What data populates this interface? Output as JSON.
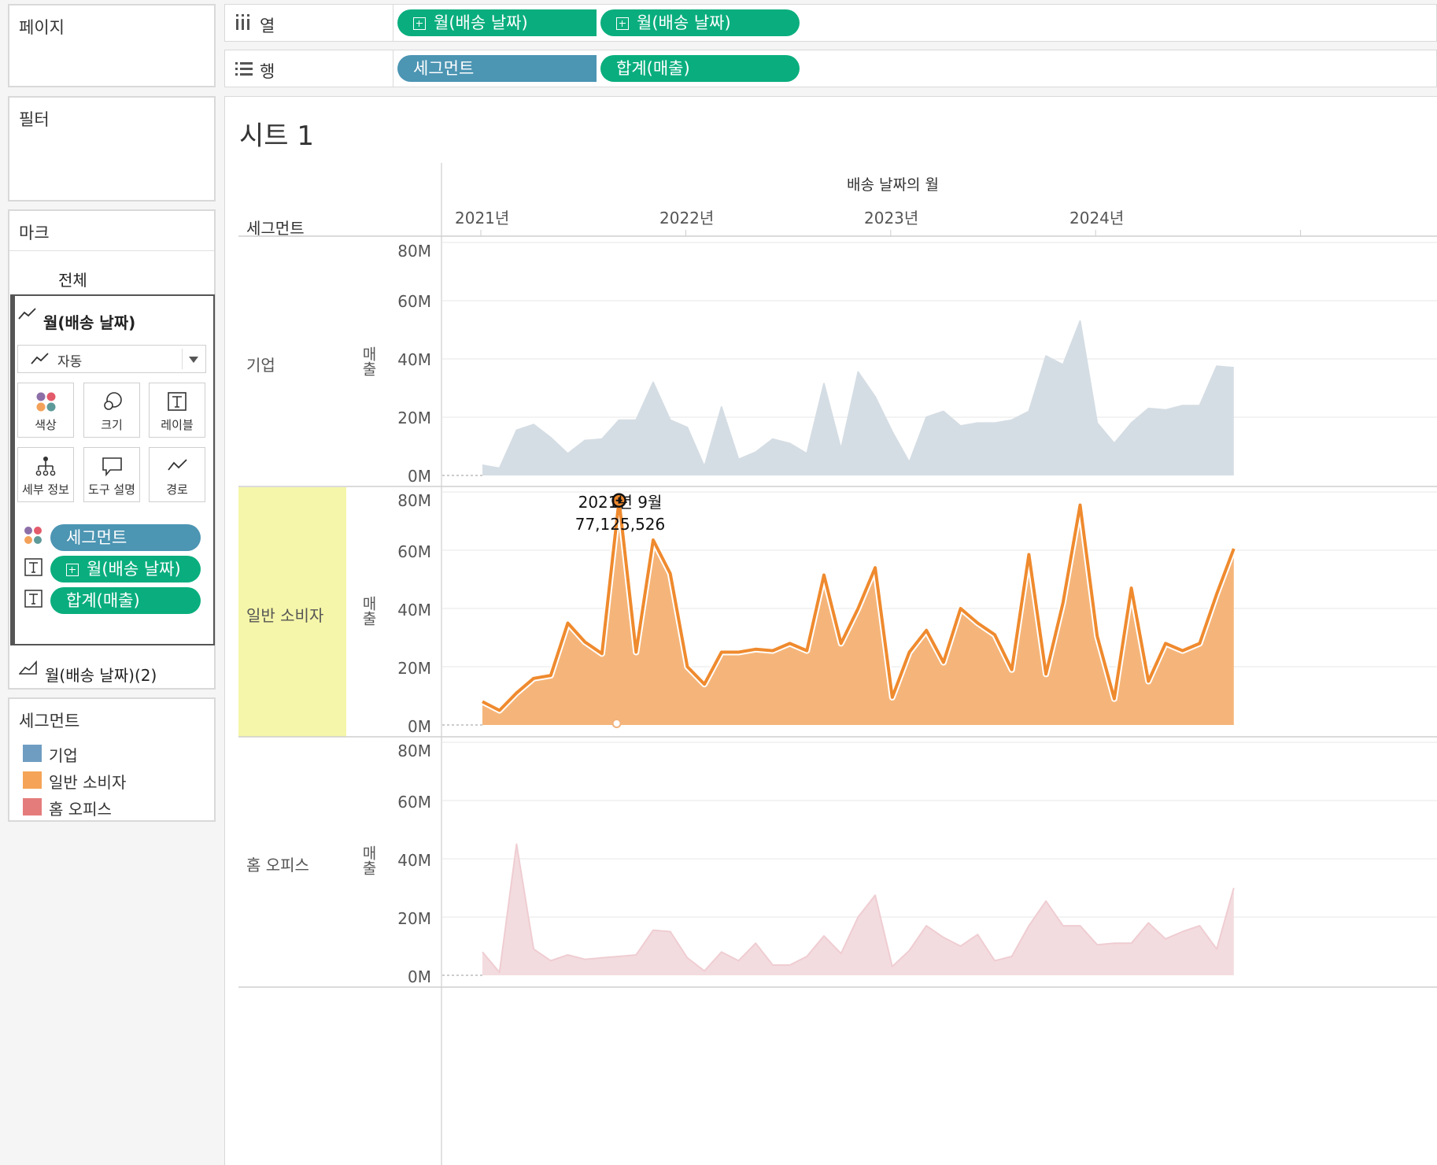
{
  "pages_card": {
    "title": "페이지"
  },
  "filters_card": {
    "title": "필터"
  },
  "marks_card": {
    "title": "마크",
    "all_tab": "전체",
    "layer1": "월(배송 날짜)",
    "mark_type": "자동",
    "buttons": {
      "color": "색상",
      "size": "크기",
      "label": "레이블",
      "detail": "세부 정보",
      "tooltip": "도구 설명",
      "path": "경로"
    },
    "fields": {
      "segment": "세그먼트",
      "month": "월(배송 날짜)",
      "sum_sales": "합계(매출)"
    },
    "layer2": "월(배송 날짜)(2)"
  },
  "legend": {
    "title": "세그먼트",
    "items": [
      {
        "label": "기업",
        "color": "#6f9dc2"
      },
      {
        "label": "일반 소비자",
        "color": "#f5a457"
      },
      {
        "label": "홈 오피스",
        "color": "#e57c7c"
      }
    ]
  },
  "shelves": {
    "columns": {
      "label": "열",
      "pills": [
        "월(배송 날짜)",
        "월(배송 날짜)"
      ]
    },
    "rows": {
      "label": "행",
      "pills": [
        "세그먼트",
        "합계(매출)"
      ]
    }
  },
  "sheet": {
    "title": "시트 1",
    "row_header": "세그먼트",
    "col_header": "배송 날짜의 월",
    "sales_axis": "매출",
    "segments": [
      "기업",
      "일반 소비자",
      "홈 오피스"
    ]
  },
  "chart_data": {
    "type": "area",
    "x_unit": "month",
    "x_start": "2021-01",
    "x_tick_labels": [
      "2021년",
      "2022년",
      "2023년",
      "2024년"
    ],
    "y_ticks": [
      "0M",
      "20M",
      "40M",
      "60M",
      "80M"
    ],
    "ylim": [
      0,
      80000000
    ],
    "series": [
      {
        "name": "기업",
        "color": "#d5dde4",
        "stroke": "#d5dde4",
        "values": [
          3.5,
          2.5,
          15.5,
          17.5,
          13,
          7.5,
          12,
          12.5,
          19,
          19,
          32,
          19,
          16.5,
          3,
          23.5,
          5.5,
          8,
          12.5,
          11,
          7.5,
          31.5,
          9,
          35.5,
          27,
          15,
          4.5,
          20,
          22,
          17,
          18,
          18,
          19,
          22,
          41,
          38,
          53,
          18,
          11,
          18,
          23,
          22.5,
          24,
          24,
          37.5,
          37
        ]
      },
      {
        "name": "일반 소비자",
        "color": "#f5b57a",
        "stroke": "#ef8a2e",
        "values": [
          8,
          5,
          11,
          16,
          17,
          35,
          28.5,
          24.5,
          77.1,
          25,
          63.5,
          52,
          20,
          14,
          25,
          25,
          26,
          25.5,
          28,
          25.5,
          51.5,
          28,
          40,
          54,
          9.5,
          25,
          32.5,
          21.5,
          40,
          35,
          31,
          19,
          58.5,
          17.5,
          42,
          75.5,
          30.5,
          9,
          47,
          15,
          28,
          25.5,
          28,
          45,
          60.5
        ]
      },
      {
        "name": "홈 오피스",
        "color": "#f3dcdf",
        "stroke": "#efcdd2",
        "values": [
          8,
          1,
          45,
          9,
          5,
          7,
          5.5,
          6,
          6.5,
          7,
          15.5,
          15,
          6,
          1.5,
          8,
          5,
          11,
          3.5,
          3.5,
          6.5,
          13.5,
          7.5,
          20,
          27.5,
          3,
          8.5,
          17,
          13,
          10,
          14,
          5,
          6.5,
          17,
          25.5,
          17,
          17,
          10.5,
          11,
          11,
          18,
          12.5,
          15,
          17,
          9,
          30
        ]
      }
    ],
    "tooltip": {
      "series": "일반 소비자",
      "date_label": "2021년 9월",
      "value_label": "77,125,526"
    }
  }
}
